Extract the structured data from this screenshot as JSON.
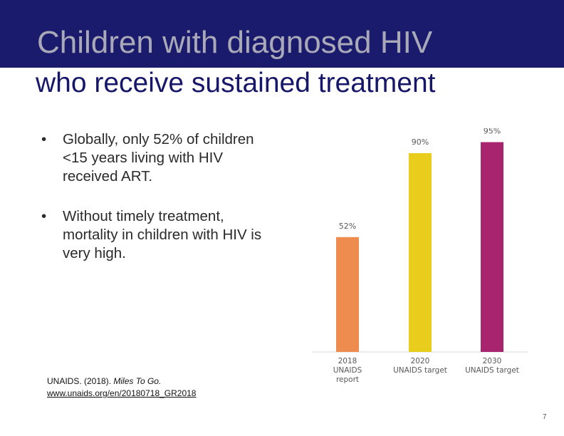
{
  "slide": {
    "title_line1": "Children with diagnosed HIV",
    "title_line2": "who receive sustained treatment",
    "bullets": [
      "Globally, only 52% of children <15 years living with HIV received ART.",
      "Without timely treatment, mortality in children with HIV is very high."
    ],
    "bullet_symbol": "•",
    "source_text": "UNAIDS. (2018). ",
    "source_title": "Miles To Go.",
    "source_link": "www.unaids.org/en/20180718_GR2018",
    "page_number": "7"
  },
  "colors": {
    "banner": "#1b1b6e",
    "title_line1": "#a9a9b8",
    "title_line2": "#17176a",
    "bar_2018": "#ed8c4e",
    "bar_2020": "#e9cd1c",
    "bar_2030": "#a8246f"
  },
  "chart_data": {
    "type": "bar",
    "categories": [
      [
        "2018",
        "UNAIDS",
        "report"
      ],
      [
        "2020",
        "UNAIDS target"
      ],
      [
        "2030",
        "UNAIDS target"
      ]
    ],
    "values": [
      52,
      90,
      95
    ],
    "data_labels": [
      "52%",
      "90%",
      "95%"
    ],
    "ylim": [
      0,
      100
    ],
    "grid": false,
    "legend": "none"
  }
}
